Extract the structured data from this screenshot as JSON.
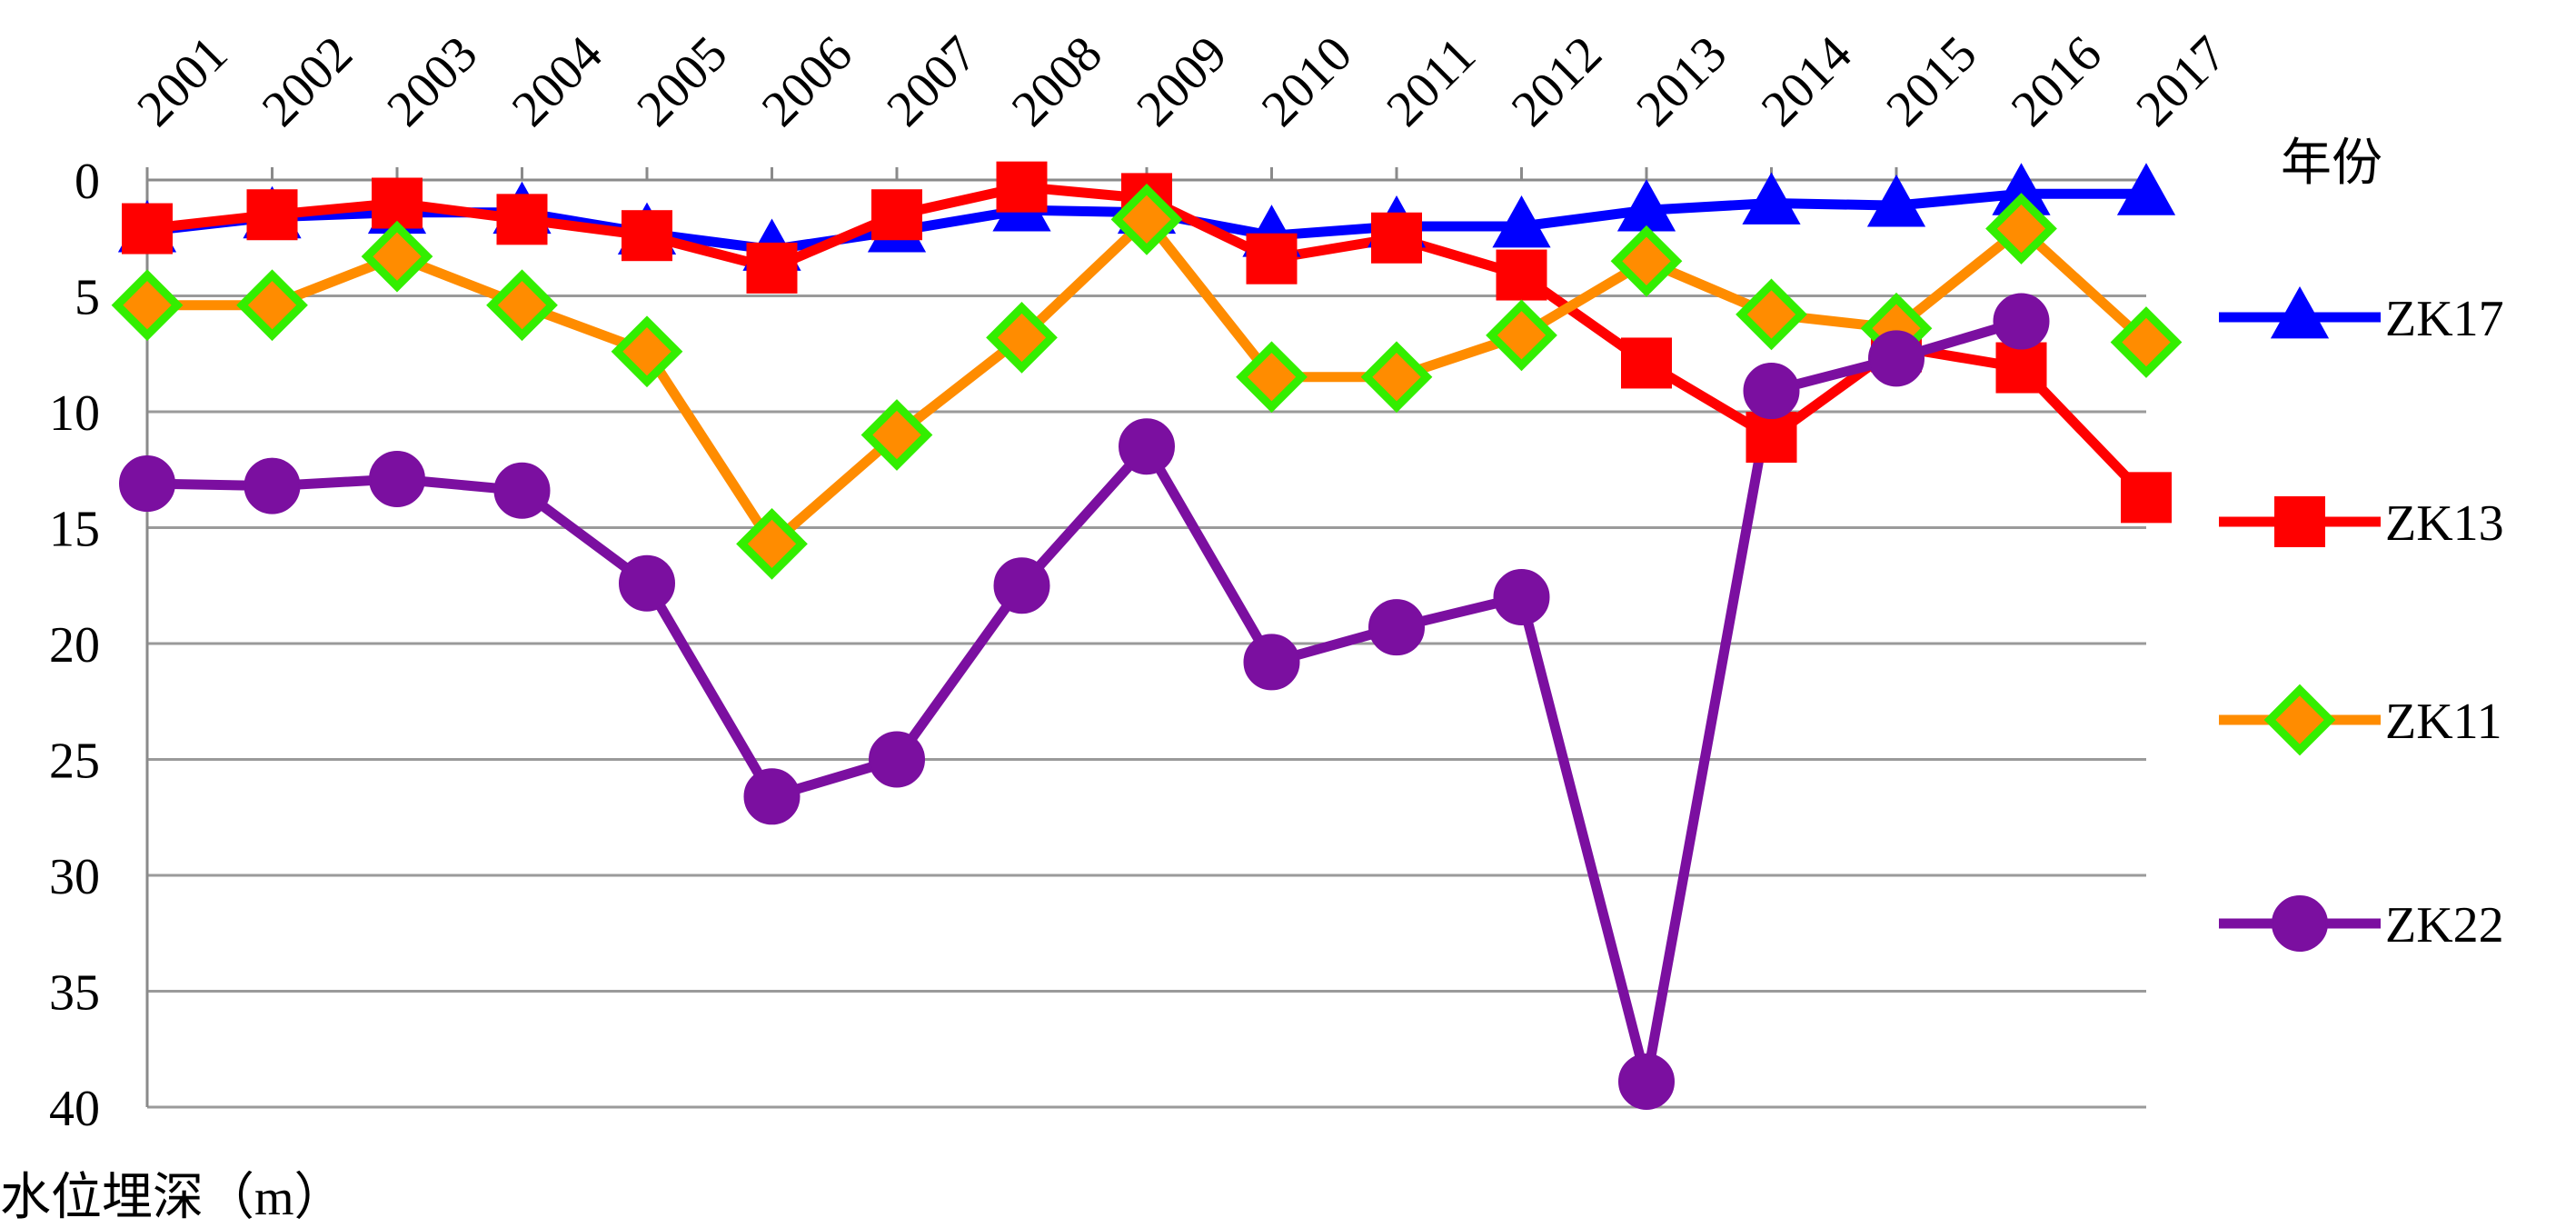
{
  "chart_data": {
    "type": "line",
    "title": "",
    "xlabel": "年份",
    "ylabel": "水位埋深（m）",
    "x": [
      "2001",
      "2002",
      "2003",
      "2004",
      "2005",
      "2006",
      "2007",
      "2008",
      "2009",
      "2010",
      "2011",
      "2012",
      "2013",
      "2014",
      "2015",
      "2016",
      "2017"
    ],
    "ylim": [
      0,
      40
    ],
    "y_inverted": true,
    "y_ticks": [
      0,
      5,
      10,
      15,
      20,
      25,
      30,
      35,
      40
    ],
    "x_axis_position": "top",
    "grid": true,
    "legend_position": "right",
    "series": [
      {
        "name": "ZK17",
        "color": "#0000ff",
        "marker": "triangle",
        "marker_fill": "#0000ff",
        "marker_stroke": "#0000ff",
        "values": [
          2.2,
          1.6,
          1.4,
          1.4,
          2.3,
          3.0,
          2.2,
          1.3,
          1.4,
          2.4,
          2.0,
          2.0,
          1.3,
          1.0,
          1.1,
          0.6,
          0.6
        ]
      },
      {
        "name": "ZK13",
        "color": "#ff0000",
        "marker": "square",
        "marker_fill": "#ff0000",
        "marker_stroke": "#ff0000",
        "values": [
          2.1,
          1.5,
          1.0,
          1.7,
          2.4,
          3.8,
          1.5,
          0.3,
          0.8,
          3.4,
          2.5,
          4.1,
          7.9,
          11.1,
          7.2,
          8.1,
          13.7
        ]
      },
      {
        "name": "ZK11",
        "color": "#ff8c00",
        "marker": "diamond",
        "marker_fill": "#ff8c00",
        "marker_stroke": "#33ee00",
        "values": [
          5.4,
          5.4,
          3.3,
          5.4,
          7.4,
          15.7,
          11.0,
          6.8,
          1.7,
          8.5,
          8.5,
          6.7,
          3.5,
          5.8,
          6.4,
          2.1,
          7.0
        ]
      },
      {
        "name": "ZK22",
        "color": "#7b0fa0",
        "marker": "circle",
        "marker_fill": "#7b0fa0",
        "marker_stroke": "#7b0fa0",
        "values": [
          13.1,
          13.2,
          12.9,
          13.4,
          17.4,
          26.6,
          25.0,
          17.5,
          11.5,
          20.8,
          19.3,
          18.0,
          38.9,
          9.1,
          7.7,
          6.1,
          null
        ]
      }
    ]
  }
}
